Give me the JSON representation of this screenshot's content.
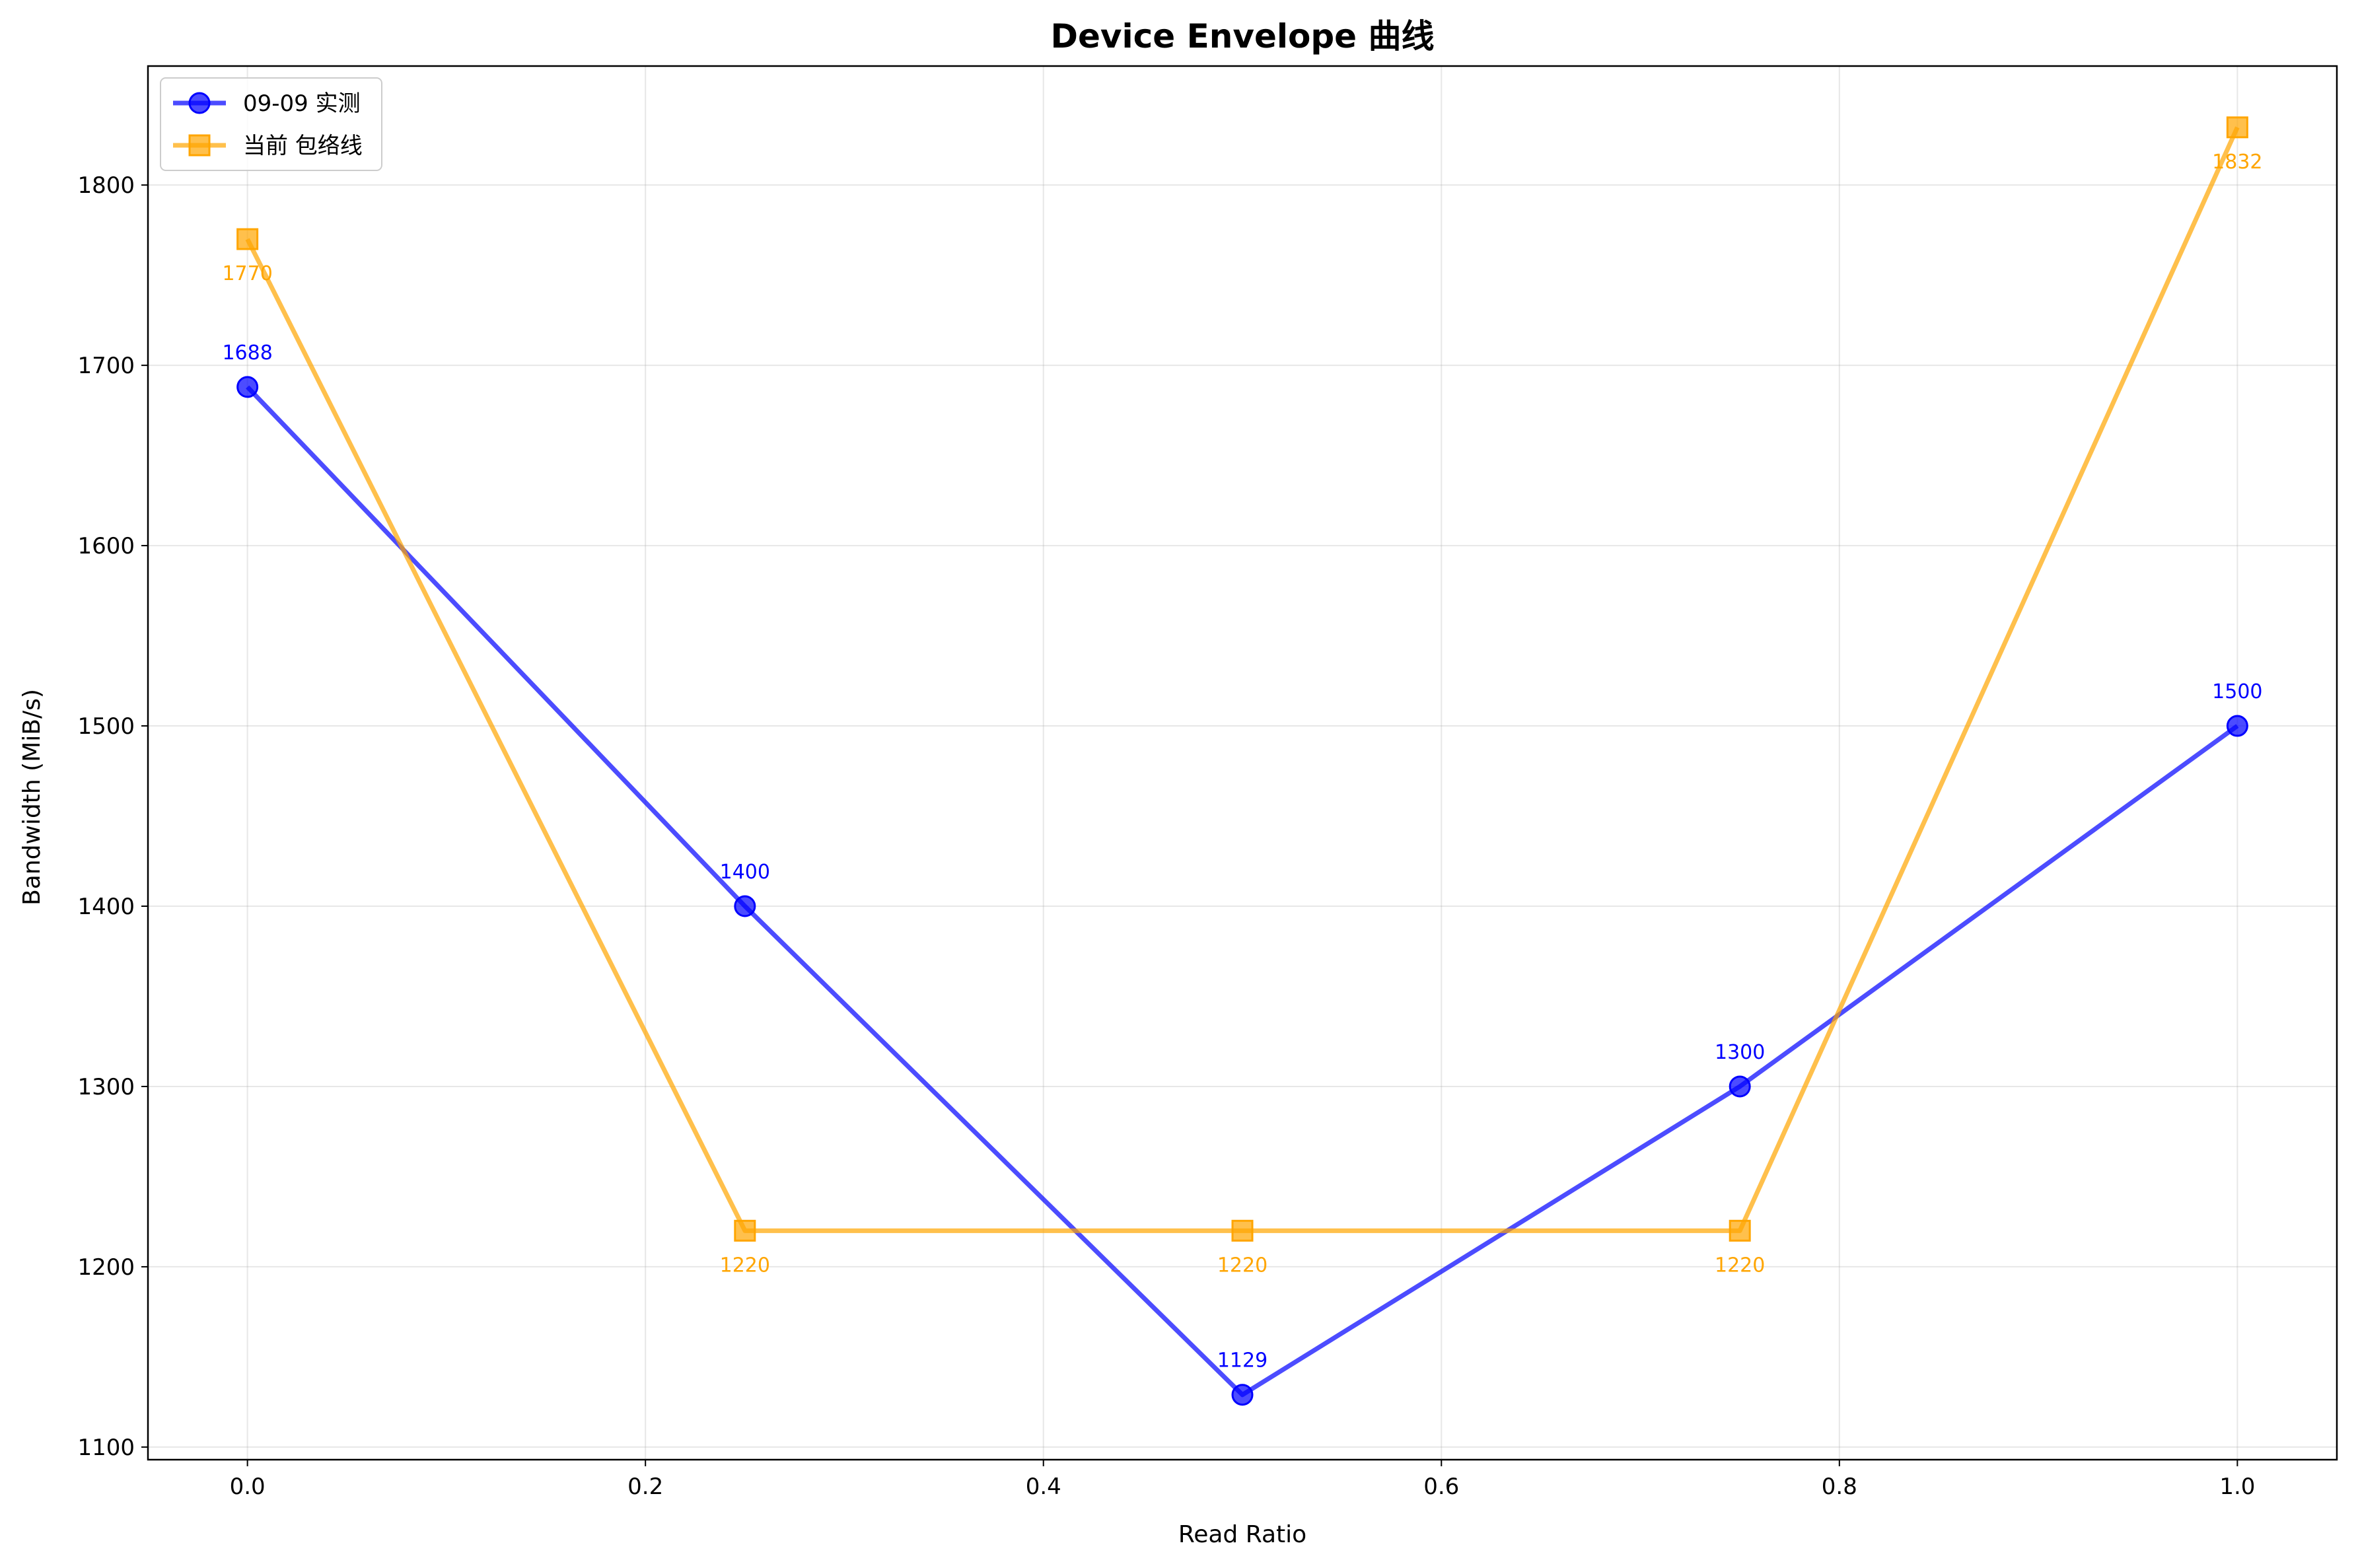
{
  "chart_data": {
    "type": "line",
    "title": "Device Envelope 曲线",
    "xlabel": "Read Ratio",
    "ylabel": "Bandwidth (MiB/s)",
    "xlim": [
      -0.05,
      1.05
    ],
    "ylim": [
      1093,
      1866
    ],
    "x_ticks": [
      0.0,
      0.2,
      0.4,
      0.6,
      0.8,
      1.0
    ],
    "x_tick_labels": [
      "0.0",
      "0.2",
      "0.4",
      "0.6",
      "0.8",
      "1.0"
    ],
    "y_ticks": [
      1100,
      1200,
      1300,
      1400,
      1500,
      1600,
      1700,
      1800
    ],
    "y_tick_labels": [
      "1100",
      "1200",
      "1300",
      "1400",
      "1500",
      "1600",
      "1700",
      "1800"
    ],
    "grid": true,
    "legend_position": "top-left",
    "series": [
      {
        "name": "09-09 实测",
        "color": "#0000ff",
        "marker": "circle",
        "label_position": "above",
        "x": [
          0.0,
          0.25,
          0.5,
          0.75,
          1.0
        ],
        "values": [
          1688,
          1400,
          1129,
          1300,
          1500
        ],
        "labels": [
          "1688",
          "1400",
          "1129",
          "1300",
          "1500"
        ]
      },
      {
        "name": "当前 包络线",
        "color": "#ffa500",
        "marker": "square",
        "label_position": "below",
        "x": [
          0.0,
          0.25,
          0.5,
          0.75,
          1.0
        ],
        "values": [
          1770,
          1220,
          1220,
          1220,
          1832
        ],
        "labels": [
          "1770",
          "1220",
          "1220",
          "1220",
          "1832"
        ]
      }
    ]
  }
}
